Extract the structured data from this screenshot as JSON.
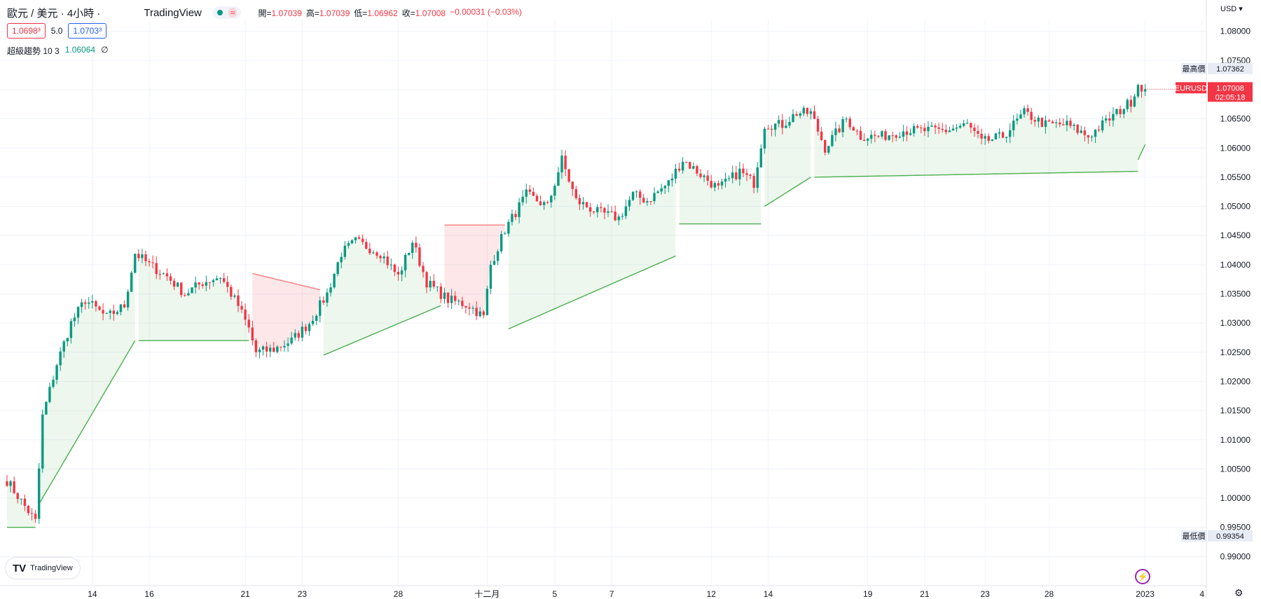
{
  "header": {
    "symbol": "歐元 / 美元 · 4小時 ·",
    "brand": "TradingView",
    "approx_symbol": "≈",
    "ohlc": [
      {
        "label": "開=",
        "value": "1.07039"
      },
      {
        "label": "高=",
        "value": "1.07039"
      },
      {
        "label": "低=",
        "value": "1.06962"
      },
      {
        "label": "收=",
        "value": "1.07008"
      },
      {
        "label": "",
        "value": "−0.00031 (−0.03%)"
      }
    ]
  },
  "quote": {
    "sell": "1.0698³",
    "spread": "5.0",
    "buy": "1.0703³"
  },
  "indicator": {
    "name": "超級趨勢 10 3",
    "value": "1.06064",
    "suffix": "∅"
  },
  "axis": {
    "currency": "USD ▾",
    "symbol_tag": "EURUSD",
    "last_price": "1.07008",
    "countdown": "02:05:18",
    "high_label": "最高價",
    "high_value": "1.07362",
    "low_label": "最低價",
    "low_value": "0.99354"
  },
  "logo_text": "TradingView",
  "colors": {
    "up": "#089981",
    "down": "#f23645",
    "st_up_fill": "rgba(76,175,80,0.10)",
    "st_down_fill": "rgba(242,54,69,0.12)",
    "grid": "#f0f3fa"
  },
  "chart_data": {
    "type": "candlestick",
    "ylim": [
      0.985,
      1.082
    ],
    "y_ticks": [
      0.99,
      0.995,
      1.0,
      1.005,
      1.01,
      1.015,
      1.02,
      1.025,
      1.03,
      1.035,
      1.04,
      1.045,
      1.05,
      1.055,
      1.06,
      1.065,
      1.07,
      1.075,
      1.08
    ],
    "y_tick_labels": [
      "0.99000",
      "0.99500",
      "1.00000",
      "1.00500",
      "1.01000",
      "1.01500",
      "1.02000",
      "1.02500",
      "1.03000",
      "1.03500",
      "1.04000",
      "1.04500",
      "1.05000",
      "1.05500",
      "1.06000",
      "1.06500",
      "1.07000",
      "1.07500",
      "1.08000"
    ],
    "x_labels": [
      {
        "label": "14",
        "i": 24
      },
      {
        "label": "16",
        "i": 40
      },
      {
        "label": "21",
        "i": 67
      },
      {
        "label": "23",
        "i": 83
      },
      {
        "label": "28",
        "i": 110
      },
      {
        "label": "十二月",
        "i": 135
      },
      {
        "label": "5",
        "i": 154
      },
      {
        "label": "7",
        "i": 170
      },
      {
        "label": "12",
        "i": 198
      },
      {
        "label": "14",
        "i": 214
      },
      {
        "label": "19",
        "i": 242
      },
      {
        "label": "21",
        "i": 258
      },
      {
        "label": "23",
        "i": 275
      },
      {
        "label": "28",
        "i": 293
      },
      {
        "label": "2023",
        "i": 320
      },
      {
        "label": "4",
        "i": 336
      }
    ],
    "anchors": [
      [
        0,
        1.003
      ],
      [
        8,
        0.996
      ],
      [
        10,
        1.014
      ],
      [
        14,
        1.023
      ],
      [
        18,
        1.03
      ],
      [
        22,
        1.034
      ],
      [
        28,
        1.031
      ],
      [
        33,
        1.033
      ],
      [
        36,
        1.042
      ],
      [
        40,
        1.04
      ],
      [
        45,
        1.038
      ],
      [
        50,
        1.035
      ],
      [
        55,
        1.037
      ],
      [
        60,
        1.038
      ],
      [
        65,
        1.033
      ],
      [
        68,
        1.029
      ],
      [
        70,
        1.025
      ],
      [
        75,
        1.0255
      ],
      [
        80,
        1.027
      ],
      [
        85,
        1.03
      ],
      [
        90,
        1.035
      ],
      [
        94,
        1.042
      ],
      [
        98,
        1.044
      ],
      [
        105,
        1.042
      ],
      [
        110,
        1.038
      ],
      [
        114,
        1.044
      ],
      [
        118,
        1.037
      ],
      [
        124,
        1.034
      ],
      [
        130,
        1.033
      ],
      [
        134,
        1.031
      ],
      [
        136,
        1.04
      ],
      [
        140,
        1.046
      ],
      [
        146,
        1.052
      ],
      [
        152,
        1.05
      ],
      [
        156,
        1.058
      ],
      [
        160,
        1.051
      ],
      [
        166,
        1.049
      ],
      [
        172,
        1.048
      ],
      [
        176,
        1.052
      ],
      [
        180,
        1.051
      ],
      [
        186,
        1.054
      ],
      [
        190,
        1.058
      ],
      [
        196,
        1.055
      ],
      [
        200,
        1.053
      ],
      [
        206,
        1.056
      ],
      [
        210,
        1.054
      ],
      [
        213,
        1.064
      ],
      [
        218,
        1.064
      ],
      [
        222,
        1.066
      ],
      [
        226,
        1.066
      ],
      [
        230,
        1.06
      ],
      [
        236,
        1.065
      ],
      [
        240,
        1.062
      ],
      [
        246,
        1.062
      ],
      [
        252,
        1.063
      ],
      [
        258,
        1.063
      ],
      [
        264,
        1.063
      ],
      [
        270,
        1.064
      ],
      [
        274,
        1.061
      ],
      [
        280,
        1.062
      ],
      [
        286,
        1.066
      ],
      [
        292,
        1.064
      ],
      [
        298,
        1.064
      ],
      [
        304,
        1.062
      ],
      [
        308,
        1.064
      ],
      [
        312,
        1.066
      ],
      [
        316,
        1.068
      ],
      [
        318,
        1.071
      ],
      [
        320,
        1.0701
      ]
    ],
    "supertrend": [
      {
        "from": 0,
        "to": 8,
        "dir": "up",
        "v0": 0.995,
        "v1": 0.995
      },
      {
        "from": 9,
        "to": 36,
        "dir": "up",
        "v0": 0.999,
        "v1": 1.027
      },
      {
        "from": 37,
        "to": 68,
        "dir": "up",
        "v0": 1.027,
        "v1": 1.027
      },
      {
        "from": 69,
        "to": 88,
        "dir": "down",
        "v0": 1.0385,
        "v1": 1.0357
      },
      {
        "from": 89,
        "to": 122,
        "dir": "up",
        "v0": 1.0245,
        "v1": 1.033
      },
      {
        "from": 123,
        "to": 140,
        "dir": "down",
        "v0": 1.0468,
        "v1": 1.0468
      },
      {
        "from": 141,
        "to": 188,
        "dir": "up",
        "v0": 1.029,
        "v1": 1.0415
      },
      {
        "from": 189,
        "to": 212,
        "dir": "up",
        "v0": 1.047,
        "v1": 1.047
      },
      {
        "from": 213,
        "to": 226,
        "dir": "up",
        "v0": 1.05,
        "v1": 1.055
      },
      {
        "from": 227,
        "to": 318,
        "dir": "up",
        "v0": 1.055,
        "v1": 1.056
      },
      {
        "from": 318,
        "to": 320,
        "dir": "up",
        "v0": 1.058,
        "v1": 1.0606
      }
    ],
    "n_bars": 321
  }
}
